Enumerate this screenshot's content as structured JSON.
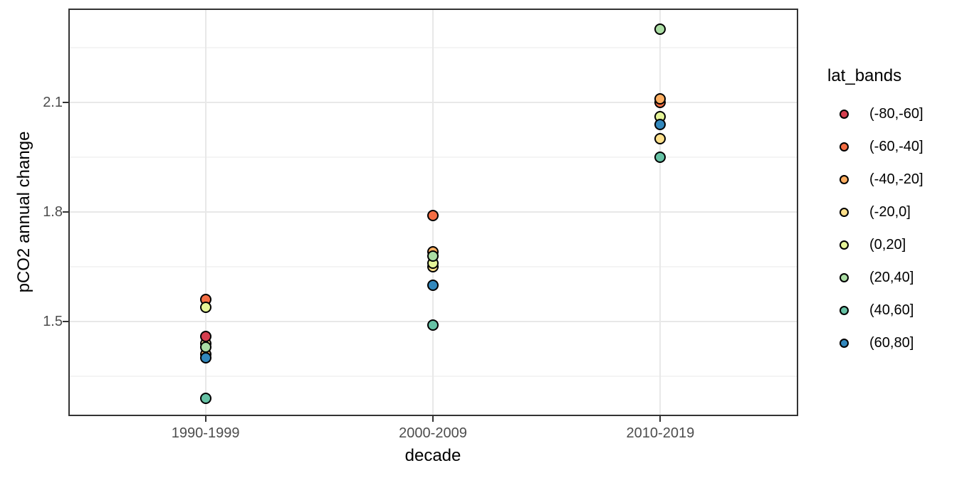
{
  "chart_data": {
    "type": "scatter",
    "title": "",
    "xlabel": "decade",
    "ylabel": "pCO2 annual change",
    "legend_title": "lat_bands",
    "legend_position": "right",
    "grid": true,
    "categories": [
      "1990-1999",
      "2000-2009",
      "2010-2019"
    ],
    "y_major_ticks": [
      1.5,
      1.8,
      2.1
    ],
    "y_minor_gridlines": [
      1.35,
      1.65,
      1.95,
      2.25
    ],
    "ylim": [
      1.245,
      2.355
    ],
    "bands": [
      {
        "label": "(-80,-60]",
        "color": "#d53e4f"
      },
      {
        "label": "(-60,-40]",
        "color": "#f46d43"
      },
      {
        "label": "(-40,-20]",
        "color": "#fdae61"
      },
      {
        "label": "(-20,0]",
        "color": "#fee08b"
      },
      {
        "label": "(0,20]",
        "color": "#e6f598"
      },
      {
        "label": "(20,40]",
        "color": "#abdda4"
      },
      {
        "label": "(40,60]",
        "color": "#66c2a5"
      },
      {
        "label": "(60,80]",
        "color": "#3288bd"
      }
    ],
    "points": [
      {
        "decade": "1990-1999",
        "band": "(-60,-40]",
        "value": 1.56
      },
      {
        "decade": "1990-1999",
        "band": "(0,20]",
        "value": 1.54
      },
      {
        "decade": "1990-1999",
        "band": "(-20,0]",
        "value": 1.44
      },
      {
        "decade": "1990-1999",
        "band": "(-40,-20]",
        "value": 1.41
      },
      {
        "decade": "1990-1999",
        "band": "(20,40]",
        "value": 1.43
      },
      {
        "decade": "1990-1999",
        "band": "(-80,-60]",
        "value": 1.46
      },
      {
        "decade": "1990-1999",
        "band": "(60,80]",
        "value": 1.4
      },
      {
        "decade": "1990-1999",
        "band": "(40,60]",
        "value": 1.29
      },
      {
        "decade": "2000-2009",
        "band": "(-60,-40]",
        "value": 1.79
      },
      {
        "decade": "2000-2009",
        "band": "(-20,0]",
        "value": 1.65
      },
      {
        "decade": "2000-2009",
        "band": "(0,20]",
        "value": 1.66
      },
      {
        "decade": "2000-2009",
        "band": "(-40,-20]",
        "value": 1.69
      },
      {
        "decade": "2000-2009",
        "band": "(20,40]",
        "value": 1.68
      },
      {
        "decade": "2000-2009",
        "band": "(60,80]",
        "value": 1.6
      },
      {
        "decade": "2000-2009",
        "band": "(40,60]",
        "value": 1.49
      },
      {
        "decade": "2010-2019",
        "band": "(-60,-40]",
        "value": 2.1
      },
      {
        "decade": "2010-2019",
        "band": "(-40,-20]",
        "value": 2.11
      },
      {
        "decade": "2010-2019",
        "band": "(-20,0]",
        "value": 2.0
      },
      {
        "decade": "2010-2019",
        "band": "(0,20]",
        "value": 2.06
      },
      {
        "decade": "2010-2019",
        "band": "(60,80]",
        "value": 2.04
      },
      {
        "decade": "2010-2019",
        "band": "(40,60]",
        "value": 1.95
      },
      {
        "decade": "2010-2019",
        "band": "(20,40]",
        "value": 2.3
      }
    ]
  }
}
